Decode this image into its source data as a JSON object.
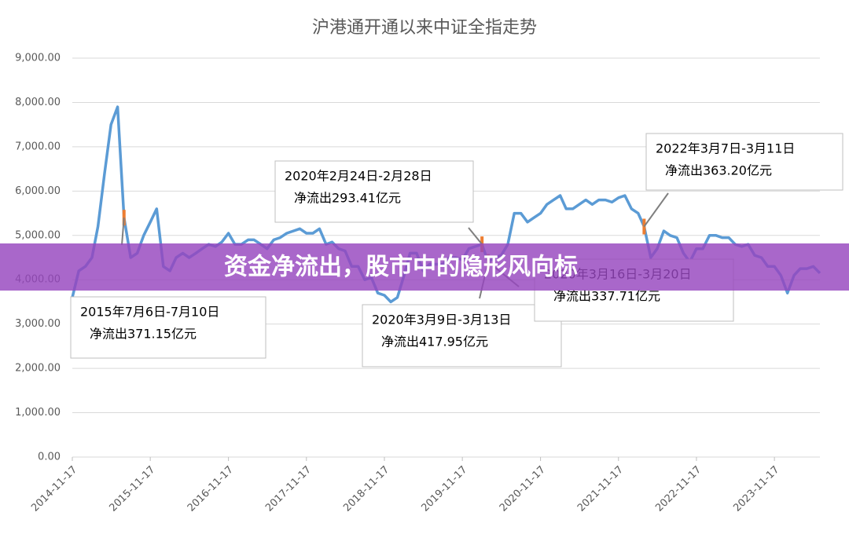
{
  "chart_data": {
    "type": "line",
    "title": "沪港通开通以来中证全指走势",
    "banner": "资金净流出，股市中的隐形风向标",
    "x": [
      "2014-11-17",
      "2014-12-17",
      "2015-01-17",
      "2015-02-17",
      "2015-03-17",
      "2015-04-17",
      "2015-05-17",
      "2015-06-17",
      "2015-07-17",
      "2015-08-17",
      "2015-09-17",
      "2015-10-17",
      "2015-11-17",
      "2015-12-17",
      "2016-01-17",
      "2016-02-17",
      "2016-03-17",
      "2016-04-17",
      "2016-05-17",
      "2016-06-17",
      "2016-07-17",
      "2016-08-17",
      "2016-09-17",
      "2016-10-17",
      "2016-11-17",
      "2016-12-17",
      "2017-01-17",
      "2017-02-17",
      "2017-03-17",
      "2017-04-17",
      "2017-05-17",
      "2017-06-17",
      "2017-07-17",
      "2017-08-17",
      "2017-09-17",
      "2017-10-17",
      "2017-11-17",
      "2017-12-17",
      "2018-01-17",
      "2018-02-17",
      "2018-03-17",
      "2018-04-17",
      "2018-05-17",
      "2018-06-17",
      "2018-07-17",
      "2018-08-17",
      "2018-09-17",
      "2018-10-17",
      "2018-11-17",
      "2018-12-17",
      "2019-01-17",
      "2019-02-17",
      "2019-03-17",
      "2019-04-17",
      "2019-05-17",
      "2019-06-17",
      "2019-07-17",
      "2019-08-17",
      "2019-09-17",
      "2019-10-17",
      "2019-11-17",
      "2019-12-17",
      "2020-01-17",
      "2020-02-17",
      "2020-03-17",
      "2020-04-17",
      "2020-05-17",
      "2020-06-17",
      "2020-07-17",
      "2020-08-17",
      "2020-09-17",
      "2020-10-17",
      "2020-11-17",
      "2020-12-17",
      "2021-01-17",
      "2021-02-17",
      "2021-03-17",
      "2021-04-17",
      "2021-05-17",
      "2021-06-17",
      "2021-07-17",
      "2021-08-17",
      "2021-09-17",
      "2021-10-17",
      "2021-11-17",
      "2021-12-17",
      "2022-01-17",
      "2022-02-17",
      "2022-03-17",
      "2022-04-17",
      "2022-05-17",
      "2022-06-17",
      "2022-07-17",
      "2022-08-17",
      "2022-09-17",
      "2022-10-17",
      "2022-11-17",
      "2022-12-17",
      "2023-01-17",
      "2023-02-17",
      "2023-03-17",
      "2023-04-17",
      "2023-05-17",
      "2023-06-17",
      "2023-07-17",
      "2023-08-17",
      "2023-09-17",
      "2023-10-17",
      "2023-11-17",
      "2023-12-17",
      "2024-01-17",
      "2024-02-17",
      "2024-03-17",
      "2024-04-17",
      "2024-05-17",
      "2024-06-17"
    ],
    "series": [
      {
        "color": "#5b9bd5",
        "values": [
          3600,
          4200,
          4300,
          4500,
          5200,
          6400,
          7500,
          7900,
          5400,
          4500,
          4600,
          5000,
          5300,
          5600,
          4300,
          4200,
          4500,
          4600,
          4500,
          4600,
          4700,
          4800,
          4750,
          4850,
          5050,
          4800,
          4800,
          4900,
          4900,
          4800,
          4700,
          4900,
          4950,
          5050,
          5100,
          5150,
          5050,
          5050,
          5150,
          4800,
          4850,
          4700,
          4650,
          4300,
          4300,
          4000,
          4050,
          3700,
          3650,
          3500,
          3600,
          4100,
          4600,
          4600,
          4200,
          4350,
          4350,
          4350,
          4500,
          4500,
          4450,
          4700,
          4750,
          4800,
          4400,
          4500,
          4550,
          4800,
          5500,
          5500,
          5300,
          5400,
          5500,
          5700,
          5800,
          5900,
          5600,
          5600,
          5700,
          5800,
          5700,
          5800,
          5800,
          5750,
          5850,
          5900,
          5600,
          5500,
          5200,
          4500,
          4700,
          5100,
          5000,
          4950,
          4600,
          4400,
          4700,
          4700,
          5000,
          5000,
          4950,
          4950,
          4800,
          4750,
          4800,
          4550,
          4500,
          4300,
          4300,
          4100,
          3700,
          4100,
          4250,
          4250,
          4300,
          4150
        ]
      }
    ],
    "highlight_color": "#ed7d31",
    "xlim": [
      "2014-11-17",
      "2024-06-17"
    ],
    "xticks": [
      "2014-11-17",
      "2015-11-17",
      "2016-11-17",
      "2017-11-17",
      "2018-11-17",
      "2019-11-17",
      "2020-11-17",
      "2021-11-17",
      "2022-11-17",
      "2023-11-17"
    ],
    "ylim": [
      0,
      9000
    ],
    "yticks": [
      {
        "value": 0,
        "label": "0.00"
      },
      {
        "value": 1000,
        "label": "1,000.00"
      },
      {
        "value": 2000,
        "label": "2,000.00"
      },
      {
        "value": 3000,
        "label": "3,000.00"
      },
      {
        "value": 4000,
        "label": "4,000.00"
      },
      {
        "value": 5000,
        "label": "5,000.00"
      },
      {
        "value": 6000,
        "label": "6,000.00"
      },
      {
        "value": 7000,
        "label": "7,000.00"
      },
      {
        "value": 8000,
        "label": "8,000.00"
      },
      {
        "value": 9000,
        "label": "9,000.00"
      }
    ],
    "grid": true,
    "annotations": [
      {
        "lines": [
          "2015年7月6日-7月10日",
          "净流出371.15亿元"
        ]
      },
      {
        "lines": [
          "2020年2月24日-2月28日",
          "净流出293.41亿元"
        ]
      },
      {
        "lines": [
          "2020年3月9日-3月13日",
          "净流出417.95亿元"
        ]
      },
      {
        "lines": [
          "2020年3月16日-3月20日",
          "净流出337.71亿元"
        ]
      },
      {
        "lines": [
          "2022年3月7日-3月11日",
          "净流出363.20亿元"
        ]
      }
    ]
  }
}
